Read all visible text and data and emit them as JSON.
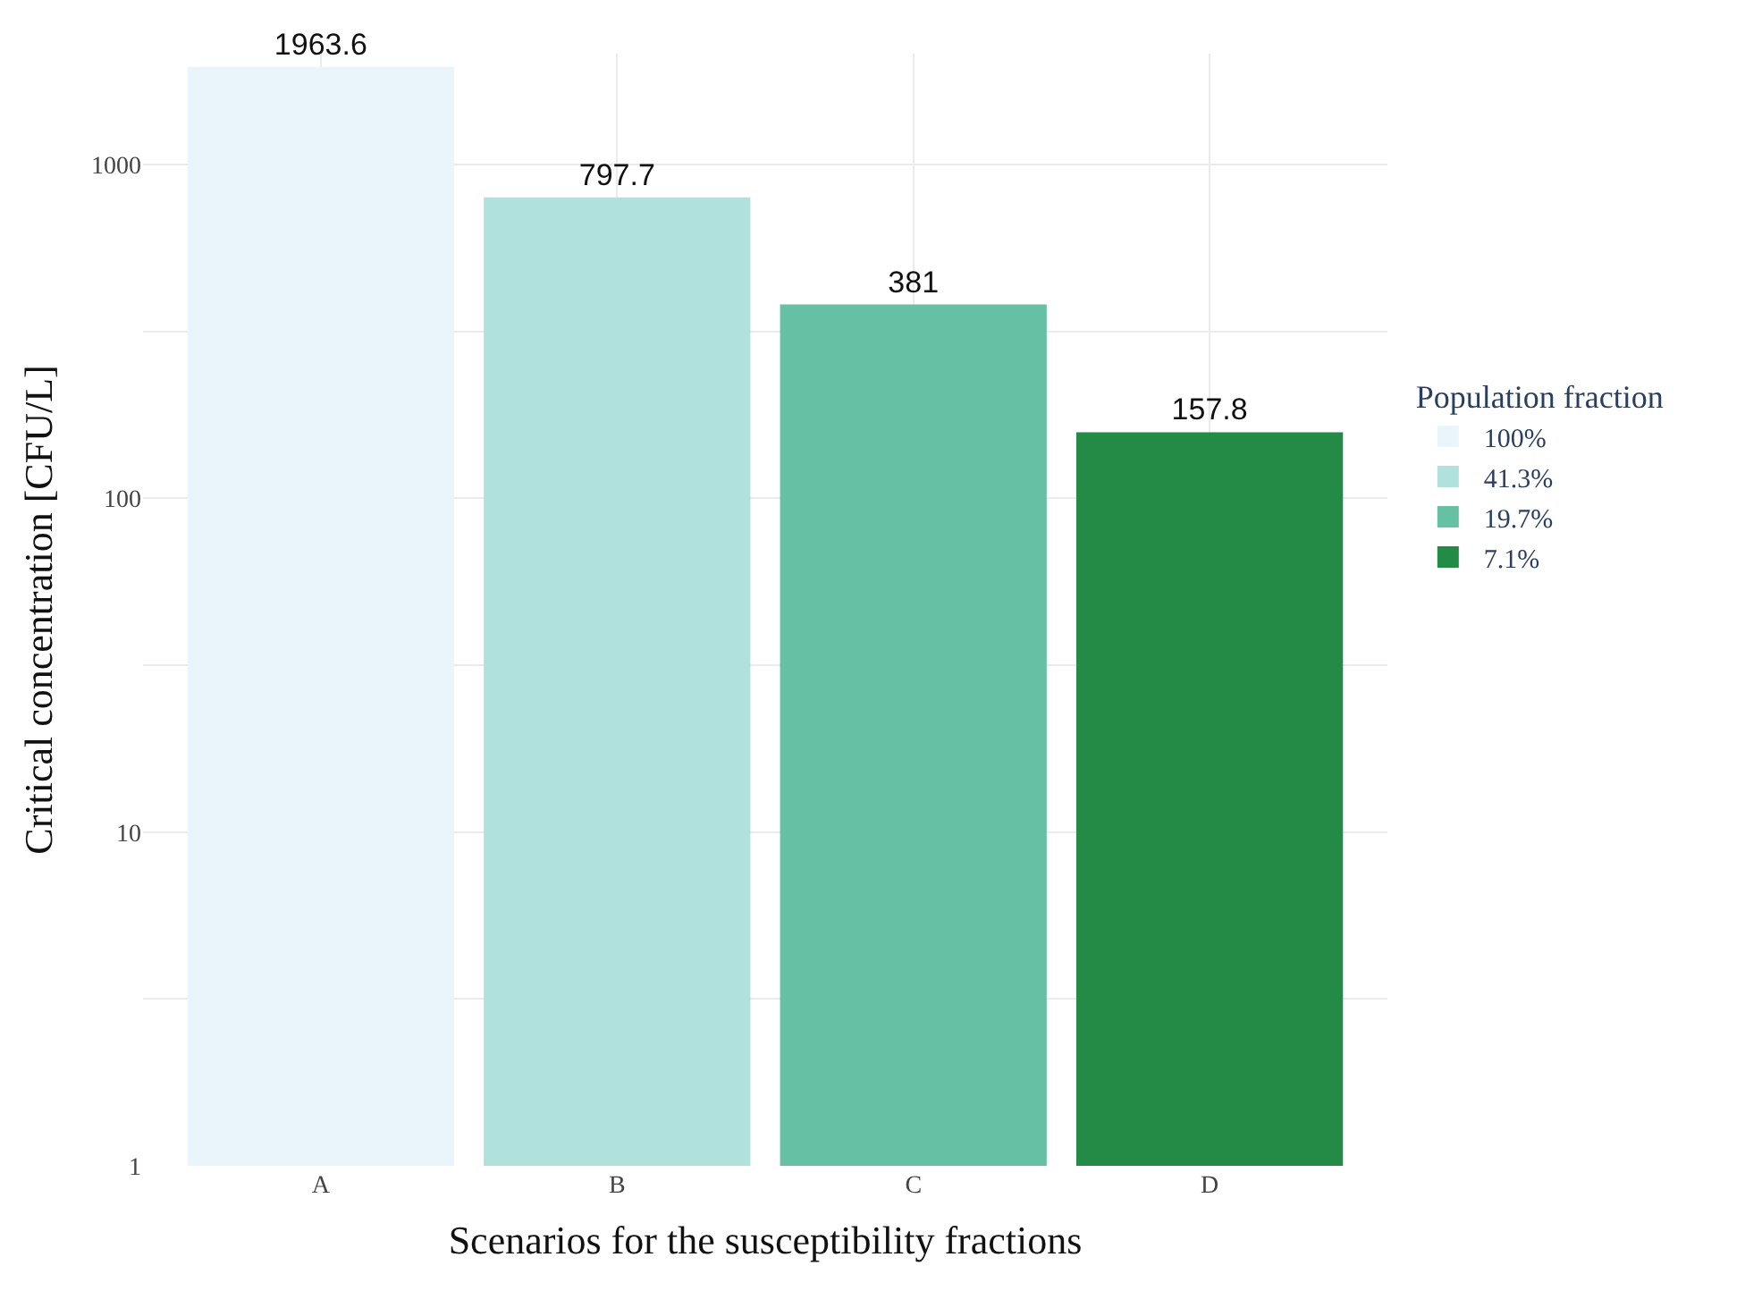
{
  "chart_data": {
    "type": "bar",
    "xlabel": "Scenarios for the susceptibility fractions",
    "ylabel": "Critical concentration [CFU/L]",
    "legend_title": "Population fraction",
    "categories": [
      "A",
      "B",
      "C",
      "D"
    ],
    "series": [
      {
        "name": "100%",
        "color": "#eaf5fb",
        "values": [
          1963.6,
          null,
          null,
          null
        ]
      },
      {
        "name": "41.3%",
        "color": "#b0e1dd",
        "values": [
          null,
          797.7,
          null,
          null
        ]
      },
      {
        "name": "19.7%",
        "color": "#66c0a4",
        "values": [
          null,
          null,
          381,
          null
        ]
      },
      {
        "name": "7.1%",
        "color": "#238b45",
        "values": [
          null,
          null,
          null,
          157.8
        ]
      }
    ],
    "log": true,
    "ylim": [
      1,
      2150
    ],
    "yticks": [
      1,
      {
        "value": 3.1623,
        "label": null
      },
      10,
      {
        "value": 31.623,
        "label": null
      },
      100,
      {
        "value": 316.23,
        "label": null
      },
      1000
    ],
    "grid": true,
    "legend": "right",
    "data_labels": true
  }
}
